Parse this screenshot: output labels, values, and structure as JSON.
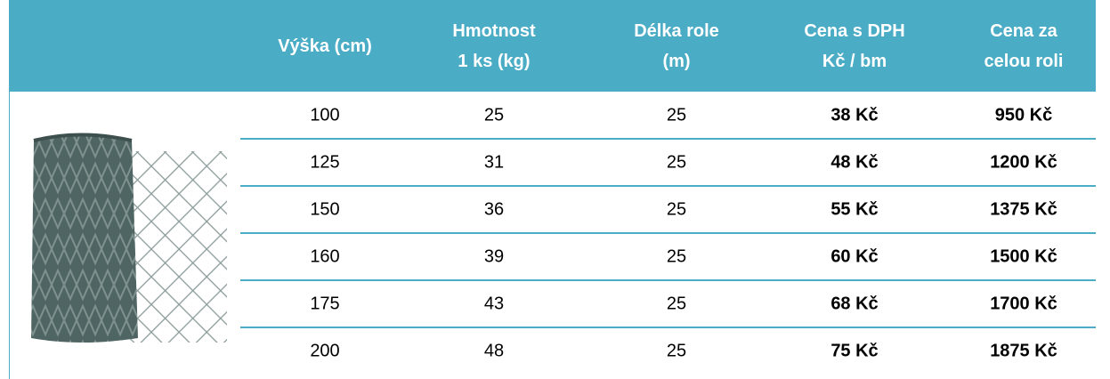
{
  "table": {
    "header": [
      [
        "Výška (cm)"
      ],
      [
        "Hmotnost",
        "1 ks (kg)"
      ],
      [
        "Délka role",
        "(m)"
      ],
      [
        "Cena s DPH",
        "Kč / bm"
      ],
      [
        "Cena za",
        "celou roli"
      ]
    ],
    "rows": [
      [
        "100",
        "25",
        "25",
        "38 Kč",
        "950 Kč"
      ],
      [
        "125",
        "31",
        "25",
        "48 Kč",
        "1200 Kč"
      ],
      [
        "150",
        "36",
        "25",
        "55 Kč",
        "1375 Kč"
      ],
      [
        "160",
        "39",
        "25",
        "60 Kč",
        "1500 Kč"
      ],
      [
        "175",
        "43",
        "25",
        "68 Kč",
        "1700 Kč"
      ],
      [
        "200",
        "48",
        "25",
        "75 Kč",
        "1875 Kč"
      ]
    ],
    "bold_columns": [
      3,
      4
    ]
  }
}
